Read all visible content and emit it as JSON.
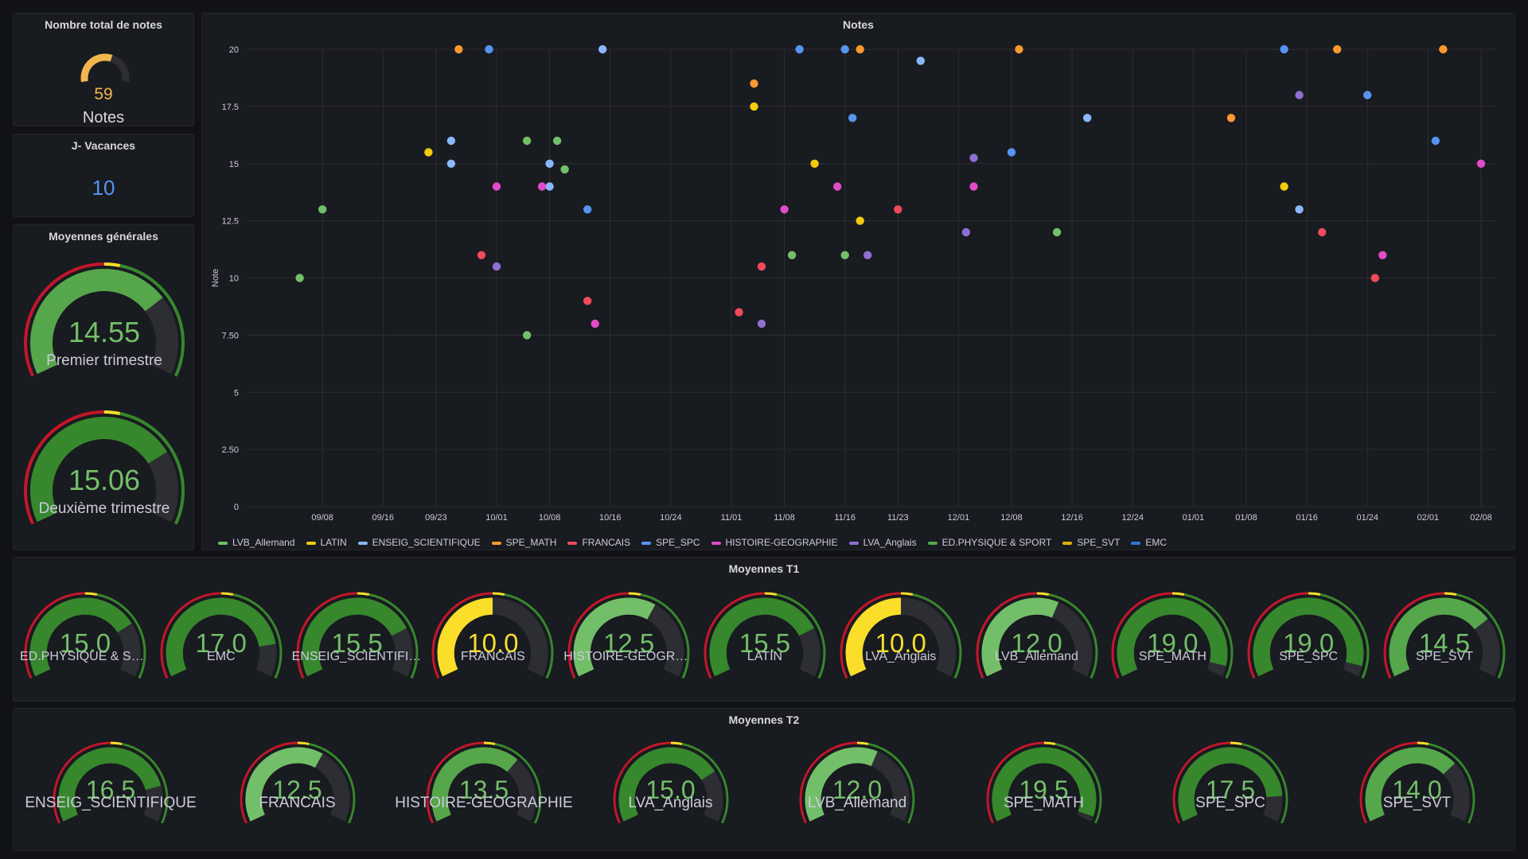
{
  "total": {
    "title": "Nombre total de notes",
    "value": "59",
    "value_num": 59,
    "max": 100,
    "label": "Notes",
    "color": "#f2b64f"
  },
  "vacances": {
    "title": "J- Vacances",
    "value": "10",
    "color": "#5794f2"
  },
  "generales": {
    "title": "Moyennes générales",
    "gauges": [
      {
        "value": "14.55",
        "value_num": 14.55,
        "label": "Premier trimestre"
      },
      {
        "value": "15.06",
        "value_num": 15.06,
        "label": "Deuxième trimestre"
      }
    ]
  },
  "t1": {
    "title": "Moyennes T1",
    "gauges": [
      {
        "value": "15.0",
        "value_num": 15.0,
        "label": "ED.PHYSIQUE & SPO..."
      },
      {
        "value": "17.0",
        "value_num": 17.0,
        "label": "EMC"
      },
      {
        "value": "15.5",
        "value_num": 15.5,
        "label": "ENSEIG_SCIENTIFIQ..."
      },
      {
        "value": "10.0",
        "value_num": 10.0,
        "label": "FRANCAIS"
      },
      {
        "value": "12.5",
        "value_num": 12.5,
        "label": "HISTOIRE-GEOGRAP..."
      },
      {
        "value": "15.5",
        "value_num": 15.5,
        "label": "LATIN"
      },
      {
        "value": "10.0",
        "value_num": 10.0,
        "label": "LVA_Anglais"
      },
      {
        "value": "12.0",
        "value_num": 12.0,
        "label": "LVB_Allemand"
      },
      {
        "value": "19.0",
        "value_num": 19.0,
        "label": "SPE_MATH"
      },
      {
        "value": "19.0",
        "value_num": 19.0,
        "label": "SPE_SPC"
      },
      {
        "value": "14.5",
        "value_num": 14.5,
        "label": "SPE_SVT"
      }
    ]
  },
  "t2": {
    "title": "Moyennes T2",
    "gauges": [
      {
        "value": "16.5",
        "value_num": 16.5,
        "label": "ENSEIG_SCIENTIFIQUE"
      },
      {
        "value": "12.5",
        "value_num": 12.5,
        "label": "FRANCAIS"
      },
      {
        "value": "13.5",
        "value_num": 13.5,
        "label": "HISTOIRE-GEOGRAPHIE"
      },
      {
        "value": "15.0",
        "value_num": 15.0,
        "label": "LVA_Anglais"
      },
      {
        "value": "12.0",
        "value_num": 12.0,
        "label": "LVB_Allemand"
      },
      {
        "value": "19.5",
        "value_num": 19.5,
        "label": "SPE_MATH"
      },
      {
        "value": "17.5",
        "value_num": 17.5,
        "label": "SPE_SPC"
      },
      {
        "value": "14.0",
        "value_num": 14.0,
        "label": "SPE_SVT"
      }
    ]
  },
  "gauge_scale": {
    "min": 0,
    "max": 20,
    "thresholds": [
      {
        "from": 0,
        "color": "#c4162a"
      },
      {
        "from": 10,
        "color": "#fade2a"
      },
      {
        "from": 11,
        "color": "#37872d"
      }
    ]
  },
  "chart_data": {
    "type": "scatter",
    "title": "Notes",
    "ylabel": "Note",
    "ylim": [
      0,
      20
    ],
    "yticks": [
      "0",
      "2.50",
      "5",
      "7.50",
      "10",
      "12.5",
      "15",
      "17.5",
      "20"
    ],
    "xticks": [
      "09/08",
      "09/16",
      "09/23",
      "10/01",
      "10/08",
      "10/16",
      "10/24",
      "11/01",
      "11/08",
      "11/16",
      "11/23",
      "12/01",
      "12/08",
      "12/16",
      "12/24",
      "01/01",
      "01/08",
      "01/16",
      "01/24",
      "02/01",
      "02/08"
    ],
    "series": [
      {
        "name": "LVB_Allemand",
        "color": "#73bf69",
        "points": [
          [
            "09/05",
            10
          ],
          [
            "09/08",
            13
          ],
          [
            "10/05",
            7.5
          ],
          [
            "10/05",
            16
          ],
          [
            "10/09",
            16
          ],
          [
            "10/10",
            14.75
          ],
          [
            "11/09",
            11
          ],
          [
            "11/16",
            11
          ],
          [
            "12/14",
            12
          ]
        ]
      },
      {
        "name": "LATIN",
        "color": "#f2cc0c",
        "points": [
          [
            "09/22",
            15.5
          ],
          [
            "11/04",
            17.5
          ],
          [
            "11/12",
            15
          ],
          [
            "11/18",
            12.5
          ],
          [
            "01/13",
            14
          ]
        ]
      },
      {
        "name": "ENSEIG_SCIENTIFIQUE",
        "color": "#8ab8ff",
        "points": [
          [
            "09/25",
            16
          ],
          [
            "09/25",
            15
          ],
          [
            "10/08",
            15
          ],
          [
            "10/08",
            14
          ],
          [
            "10/15",
            20
          ],
          [
            "11/26",
            19.5
          ],
          [
            "12/18",
            17
          ],
          [
            "01/15",
            13
          ]
        ]
      },
      {
        "name": "SPE_MATH",
        "color": "#ff9830",
        "points": [
          [
            "09/26",
            20
          ],
          [
            "11/04",
            18.5
          ],
          [
            "11/18",
            20
          ],
          [
            "12/09",
            20
          ],
          [
            "01/06",
            17
          ],
          [
            "01/20",
            20
          ],
          [
            "02/03",
            20
          ]
        ]
      },
      {
        "name": "FRANCAIS",
        "color": "#f2495c",
        "points": [
          [
            "09/29",
            11
          ],
          [
            "10/13",
            9
          ],
          [
            "11/02",
            8.5
          ],
          [
            "11/05",
            10.5
          ],
          [
            "11/23",
            13
          ],
          [
            "01/18",
            12
          ],
          [
            "01/25",
            10
          ]
        ]
      },
      {
        "name": "SPE_SPC",
        "color": "#5794f2",
        "points": [
          [
            "09/30",
            20
          ],
          [
            "10/13",
            13
          ],
          [
            "11/10",
            20
          ],
          [
            "11/16",
            20
          ],
          [
            "11/17",
            17
          ],
          [
            "12/08",
            15.5
          ],
          [
            "01/13",
            20
          ],
          [
            "01/24",
            18
          ],
          [
            "02/02",
            16
          ]
        ]
      },
      {
        "name": "HISTOIRE-GEOGRAPHIE",
        "color": "#e04cc8",
        "points": [
          [
            "10/01",
            14
          ],
          [
            "10/07",
            14
          ],
          [
            "10/14",
            8
          ],
          [
            "11/08",
            13
          ],
          [
            "11/15",
            14
          ],
          [
            "12/03",
            14
          ],
          [
            "01/26",
            11
          ],
          [
            "02/08",
            15
          ]
        ]
      },
      {
        "name": "LVA_Anglais",
        "color": "#8f6fd1",
        "points": [
          [
            "10/01",
            10.5
          ],
          [
            "11/05",
            8
          ],
          [
            "11/19",
            11
          ],
          [
            "12/02",
            12
          ],
          [
            "12/03",
            15.25
          ],
          [
            "01/15",
            18
          ]
        ]
      },
      {
        "name": "ED.PHYSIQUE & SPORT",
        "color": "#56a64b",
        "points": []
      },
      {
        "name": "SPE_SVT",
        "color": "#e0b400",
        "points": []
      },
      {
        "name": "EMC",
        "color": "#3274d9",
        "points": []
      }
    ]
  }
}
